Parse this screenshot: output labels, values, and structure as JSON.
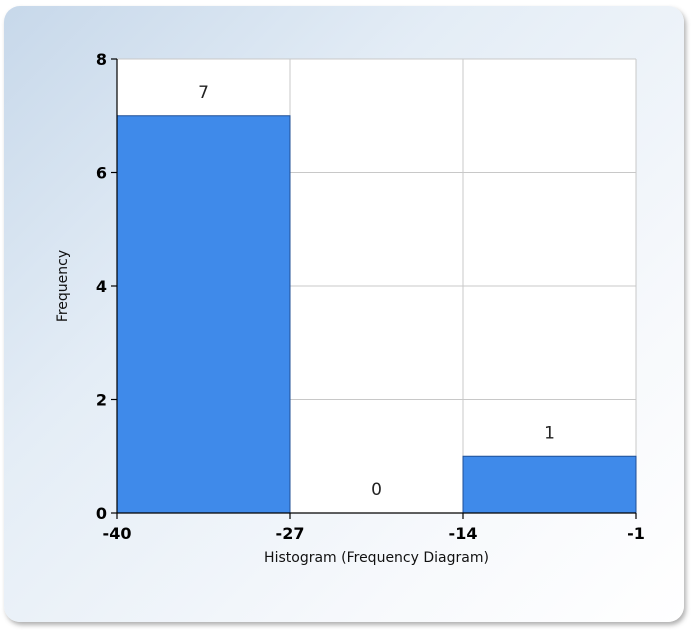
{
  "chart_data": {
    "type": "bar",
    "bins": [
      {
        "from": -40,
        "to": -27,
        "value": 7
      },
      {
        "from": -27,
        "to": -14,
        "value": 0
      },
      {
        "from": -14,
        "to": -1,
        "value": 1
      }
    ],
    "x_ticks": [
      -40,
      -27,
      -14,
      -1
    ],
    "y_ticks": [
      0,
      2,
      4,
      6,
      8
    ],
    "xlim": [
      -40,
      -1
    ],
    "ylim": [
      0,
      8
    ],
    "xlabel": "Histogram (Frequency Diagram)",
    "ylabel": "Frequency",
    "title": "",
    "grid": true,
    "bar_color": "#3f8aea",
    "bar_edge_color": "#1f4f96"
  }
}
